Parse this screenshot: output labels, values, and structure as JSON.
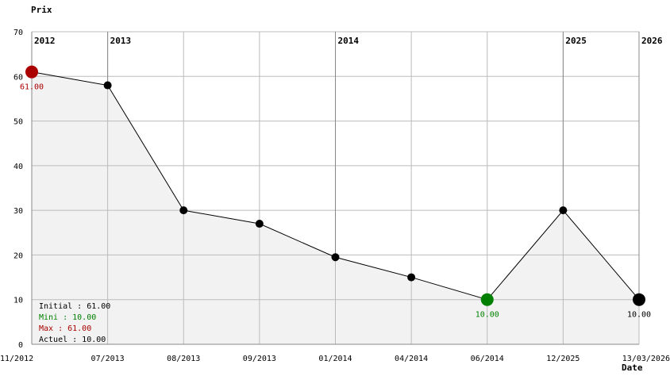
{
  "chart_data": {
    "type": "line",
    "ylabel": "Prix",
    "xlabel": "Date",
    "ylim": [
      0,
      70
    ],
    "yticks": [
      0,
      10,
      20,
      30,
      40,
      50,
      60,
      70
    ],
    "grid": true,
    "area_fill": true,
    "categories": [
      "11/2012",
      "07/2013",
      "08/2013",
      "09/2013",
      "01/2014",
      "04/2014",
      "06/2014",
      "12/2025",
      "13/03/2026"
    ],
    "values": [
      61.0,
      58.0,
      30.0,
      27.0,
      19.5,
      15.0,
      10.0,
      30.0,
      10.0
    ],
    "year_markers": [
      {
        "index": 0,
        "label": "2012"
      },
      {
        "index": 1,
        "label": "2013"
      },
      {
        "index": 4,
        "label": "2014"
      },
      {
        "index": 7,
        "label": "2025"
      },
      {
        "index": 8,
        "label": "2026"
      }
    ],
    "max_point": {
      "index": 0,
      "label": "61.00"
    },
    "min_point": {
      "index": 6,
      "label": "10.00"
    },
    "current_point": {
      "index": 8,
      "label": "10.00"
    },
    "stats": [
      {
        "text": "Initial : 61.00",
        "color": "#000000"
      },
      {
        "text": "Mini : 10.00",
        "color": "#008000"
      },
      {
        "text": "Max : 61.00",
        "color": "#aa0000"
      },
      {
        "text": "Actuel : 10.00",
        "color": "#000000"
      }
    ],
    "colors": {
      "line": "#000000",
      "point": "#000000",
      "max": "#aa0000",
      "min": "#008000",
      "area": "#f2f2f2",
      "grid": "#bbbbbb",
      "year_line": "#888888"
    }
  }
}
